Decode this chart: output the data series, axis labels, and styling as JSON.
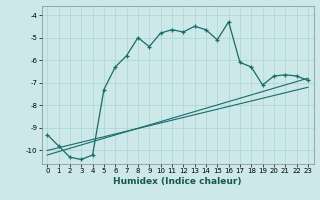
{
  "title": "",
  "xlabel": "Humidex (Indice chaleur)",
  "bg_color": "#cce8e8",
  "line_color": "#1a6b6b",
  "grid_color": "#aad4d4",
  "xlim": [
    -0.5,
    23.5
  ],
  "ylim": [
    -10.6,
    -3.6
  ],
  "yticks": [
    -10,
    -9,
    -8,
    -7,
    -6,
    -5,
    -4
  ],
  "xticks": [
    0,
    1,
    2,
    3,
    4,
    5,
    6,
    7,
    8,
    9,
    10,
    11,
    12,
    13,
    14,
    15,
    16,
    17,
    18,
    19,
    20,
    21,
    22,
    23
  ],
  "curve_x": [
    0,
    1,
    2,
    3,
    4,
    5,
    6,
    7,
    8,
    9,
    10,
    11,
    12,
    13,
    14,
    15,
    16,
    17,
    18,
    19,
    20,
    21,
    22,
    23
  ],
  "curve_y": [
    -9.3,
    -9.8,
    -10.3,
    -10.4,
    -10.2,
    -7.3,
    -6.3,
    -5.8,
    -5.0,
    -5.4,
    -4.8,
    -4.65,
    -4.75,
    -4.5,
    -4.65,
    -5.1,
    -4.3,
    -6.1,
    -6.3,
    -7.1,
    -6.7,
    -6.65,
    -6.7,
    -6.9
  ],
  "line2_x": [
    0,
    23
  ],
  "line2_y": [
    -10.2,
    -6.8
  ],
  "line3_x": [
    0,
    23
  ],
  "line3_y": [
    -10.0,
    -7.2
  ]
}
